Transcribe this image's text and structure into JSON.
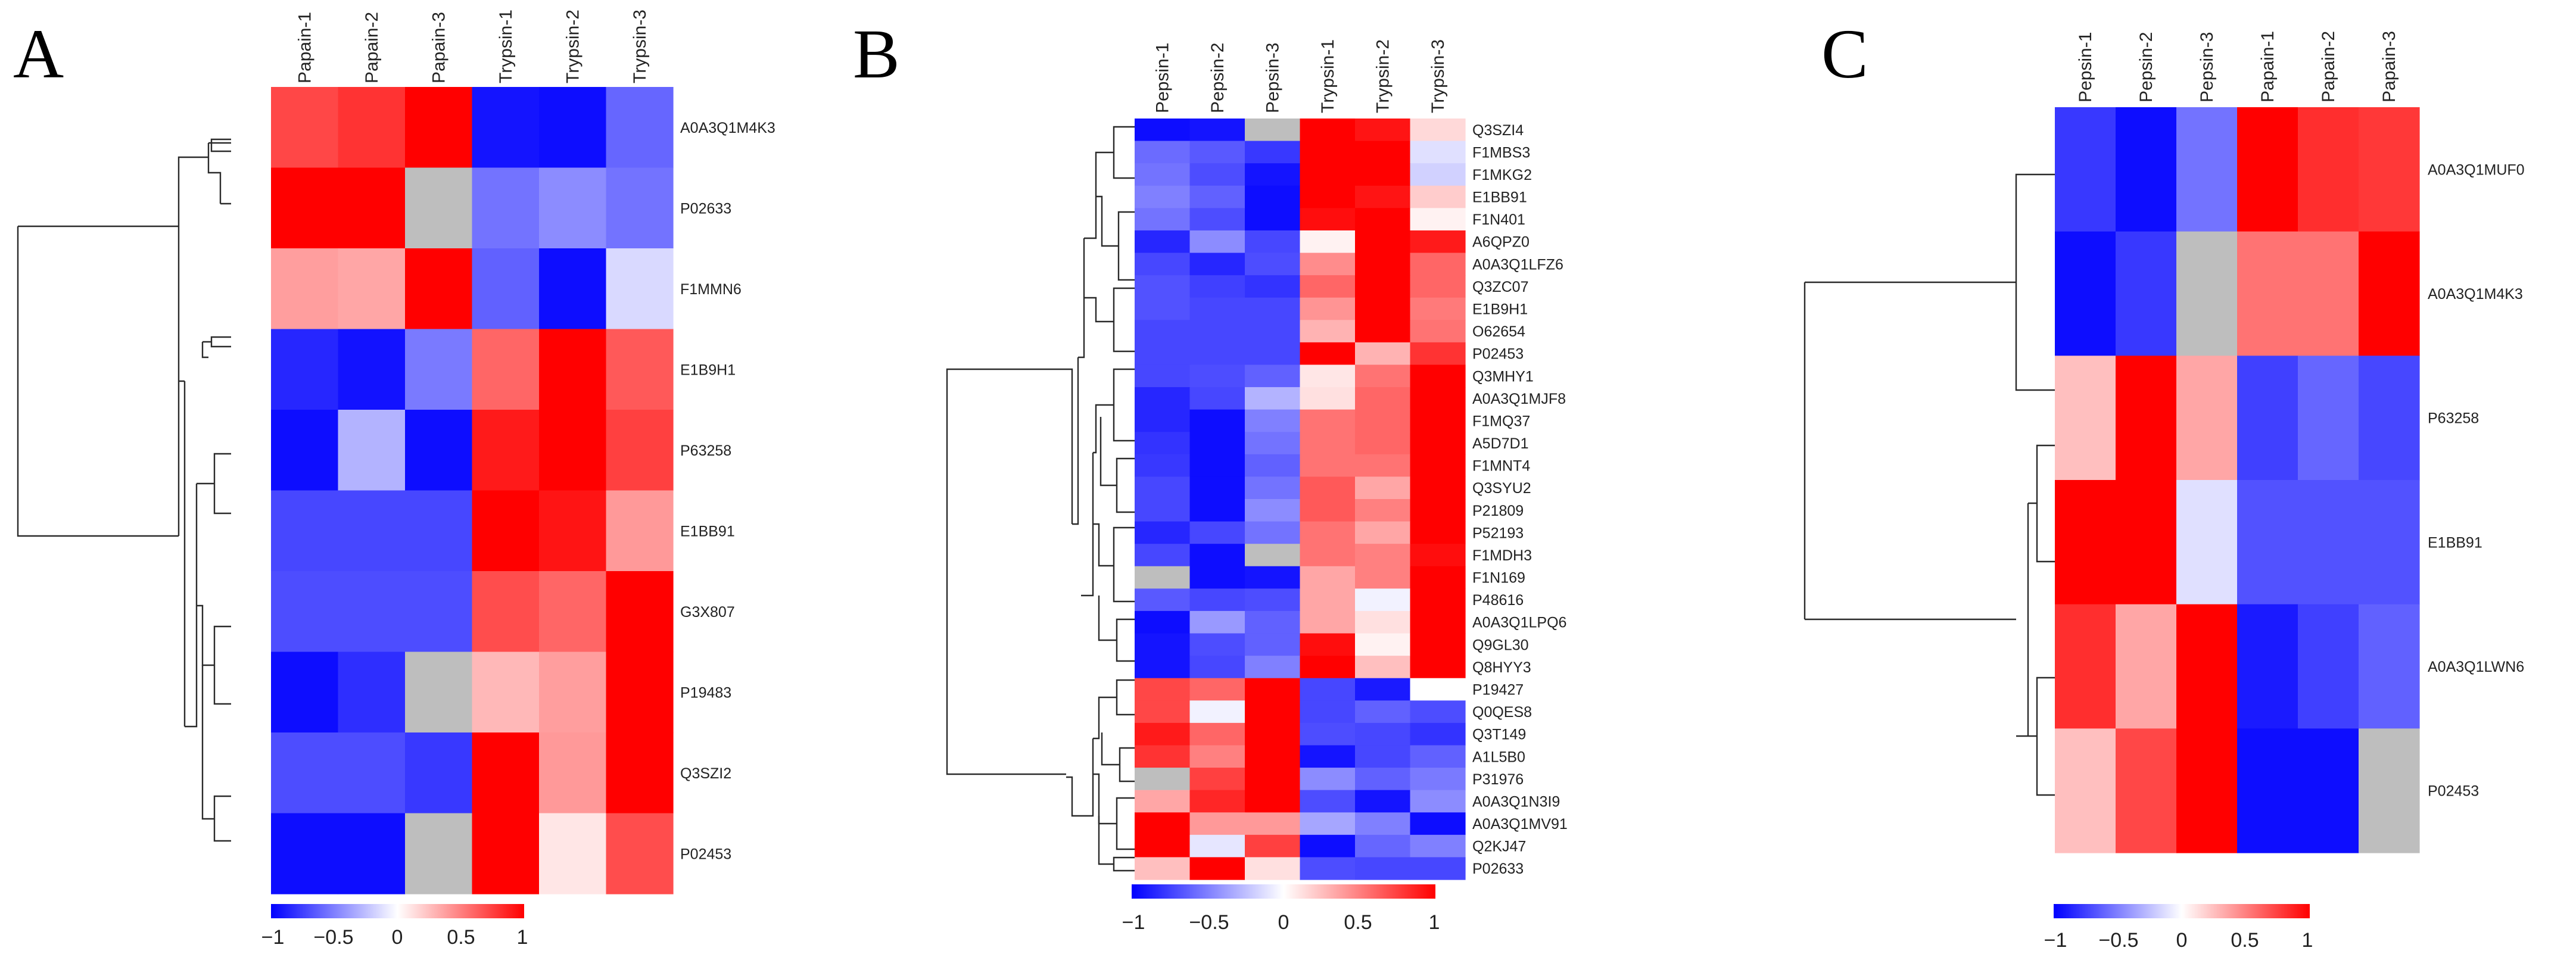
{
  "colors": {
    "low": "#0000ff",
    "mid": "#ffffff",
    "high": "#ff0000",
    "na": "#bebebe"
  },
  "chart_data": [
    {
      "type": "heatmap",
      "panel": "A",
      "columns": [
        "Papain-1",
        "Papain-2",
        "Papain-3",
        "Trypsin-1",
        "Trypsin-2",
        "Trypsin-3"
      ],
      "rows": [
        "A0A3Q1M4K3",
        "P02633",
        "F1MMN6",
        "E1B9H1",
        "P63258",
        "E1BB91",
        "G3X807",
        "P19483",
        "Q3SZI2",
        "P02453"
      ],
      "values": [
        [
          0.72,
          0.8,
          1.0,
          -0.92,
          -0.95,
          -0.6
        ],
        [
          1.0,
          1.0,
          null,
          -0.55,
          -0.45,
          -0.55
        ],
        [
          0.38,
          0.35,
          1.0,
          -0.62,
          -0.95,
          -0.15
        ],
        [
          -0.85,
          -0.93,
          -0.52,
          0.6,
          1.0,
          0.65
        ],
        [
          -0.95,
          -0.3,
          -0.95,
          0.9,
          1.0,
          0.75
        ],
        [
          -0.72,
          -0.72,
          -0.72,
          1.0,
          0.92,
          0.4
        ],
        [
          -0.7,
          -0.7,
          -0.7,
          0.7,
          0.6,
          1.0
        ],
        [
          -0.95,
          -0.82,
          null,
          0.28,
          0.38,
          1.0
        ],
        [
          -0.7,
          -0.7,
          -0.78,
          1.0,
          0.4,
          1.0
        ],
        [
          -0.95,
          -0.95,
          null,
          1.0,
          0.1,
          0.7
        ]
      ],
      "legend": {
        "min": -1,
        "max": 1,
        "ticks": [
          "−1",
          "−0.5",
          "0",
          "0.5",
          "1"
        ]
      }
    },
    {
      "type": "heatmap",
      "panel": "B",
      "columns": [
        "Pepsin-1",
        "Pepsin-2",
        "Pepsin-3",
        "Trypsin-1",
        "Trypsin-2",
        "Trypsin-3"
      ],
      "rows": [
        "Q3SZI4",
        "F1MBS3",
        "F1MKG2",
        "E1BB91",
        "F1N401",
        "A6QPZ0",
        "A0A3Q1LFZ6",
        "Q3ZC07",
        "E1B9H1",
        "O62654",
        "P02453",
        "Q3MHY1",
        "A0A3Q1MJF8",
        "F1MQ37",
        "A5D7D1",
        "F1MNT4",
        "Q3SYU2",
        "P21809",
        "P52193",
        "F1MDH3",
        "F1N169",
        "P48616",
        "A0A3Q1LPQ6",
        "Q9GL30",
        "Q8HYY3",
        "P19427",
        "Q0QES8",
        "Q3T149",
        "A1L5B0",
        "P31976",
        "A0A3Q1N3I9",
        "A0A3Q1MV91",
        "Q2KJ47",
        "P02633"
      ],
      "values": [
        [
          -0.95,
          -0.92,
          null,
          1.0,
          0.92,
          0.15
        ],
        [
          -0.58,
          -0.65,
          -0.78,
          1.0,
          1.0,
          -0.12
        ],
        [
          -0.55,
          -0.7,
          -0.92,
          1.0,
          1.0,
          -0.18
        ],
        [
          -0.5,
          -0.62,
          -0.95,
          1.0,
          0.92,
          0.2
        ],
        [
          -0.55,
          -0.7,
          -0.95,
          0.95,
          1.0,
          0.05
        ],
        [
          -0.85,
          -0.45,
          -0.72,
          0.05,
          1.0,
          0.9
        ],
        [
          -0.72,
          -0.85,
          -0.7,
          0.45,
          1.0,
          0.6
        ],
        [
          -0.68,
          -0.75,
          -0.8,
          0.6,
          1.0,
          0.6
        ],
        [
          -0.68,
          -0.72,
          -0.72,
          0.42,
          1.0,
          0.52
        ],
        [
          -0.72,
          -0.72,
          -0.72,
          0.3,
          1.0,
          0.55
        ],
        [
          -0.72,
          -0.72,
          -0.72,
          1.0,
          0.3,
          0.8
        ],
        [
          -0.72,
          -0.7,
          -0.62,
          0.1,
          0.55,
          1.0
        ],
        [
          -0.85,
          -0.72,
          -0.3,
          0.12,
          0.6,
          1.0
        ],
        [
          -0.85,
          -0.95,
          -0.5,
          0.55,
          0.6,
          1.0
        ],
        [
          -0.8,
          -0.95,
          -0.55,
          0.55,
          0.6,
          1.0
        ],
        [
          -0.78,
          -0.95,
          -0.62,
          0.55,
          0.55,
          1.0
        ],
        [
          -0.72,
          -0.95,
          -0.55,
          0.65,
          0.35,
          1.0
        ],
        [
          -0.72,
          -0.95,
          -0.45,
          0.65,
          0.5,
          1.0
        ],
        [
          -0.85,
          -0.72,
          -0.55,
          0.55,
          0.35,
          1.0
        ],
        [
          -0.72,
          -0.95,
          null,
          0.55,
          0.5,
          0.95
        ],
        [
          null,
          -0.95,
          -0.92,
          0.35,
          0.5,
          1.0
        ],
        [
          -0.65,
          -0.72,
          -0.7,
          0.35,
          -0.05,
          1.0
        ],
        [
          -0.95,
          -0.4,
          -0.62,
          0.35,
          0.12,
          1.0
        ],
        [
          -0.92,
          -0.7,
          -0.62,
          0.95,
          0.05,
          1.0
        ],
        [
          -0.92,
          -0.72,
          -0.5,
          1.0,
          0.25,
          1.0
        ],
        [
          0.72,
          0.6,
          1.0,
          -0.72,
          -0.9,
          0.0
        ],
        [
          0.72,
          -0.05,
          1.0,
          -0.72,
          -0.62,
          -0.7
        ],
        [
          0.9,
          0.6,
          1.0,
          -0.7,
          -0.72,
          -0.8
        ],
        [
          0.8,
          0.5,
          1.0,
          -0.92,
          -0.72,
          -0.62
        ],
        [
          null,
          0.75,
          1.0,
          -0.45,
          -0.62,
          -0.52
        ],
        [
          0.35,
          0.85,
          1.0,
          -0.7,
          -0.92,
          -0.45
        ],
        [
          1.0,
          0.4,
          0.4,
          -0.35,
          -0.5,
          -0.95
        ],
        [
          1.0,
          -0.1,
          0.75,
          -0.95,
          -0.6,
          -0.5
        ],
        [
          0.25,
          1.0,
          0.12,
          -0.7,
          -0.72,
          -0.72
        ]
      ],
      "legend": {
        "min": -1,
        "max": 1,
        "ticks": [
          "−1",
          "−0.5",
          "0",
          "0.5",
          "1"
        ]
      }
    },
    {
      "type": "heatmap",
      "panel": "C",
      "columns": [
        "Pepsin-1",
        "Pepsin-2",
        "Pepsin-3",
        "Papain-1",
        "Papain-2",
        "Papain-3"
      ],
      "rows": [
        "A0A3Q1MUF0",
        "A0A3Q1M4K3",
        "P63258",
        "E1BB91",
        "A0A3Q1LWN6",
        "P02453"
      ],
      "values": [
        [
          -0.78,
          -0.95,
          -0.55,
          1.0,
          0.82,
          0.78
        ],
        [
          -0.95,
          -0.78,
          null,
          0.55,
          0.55,
          1.0
        ],
        [
          0.25,
          1.0,
          0.35,
          -0.75,
          -0.6,
          -0.72
        ],
        [
          1.0,
          1.0,
          -0.12,
          -0.68,
          -0.68,
          -0.68
        ],
        [
          0.82,
          0.35,
          1.0,
          -0.9,
          -0.75,
          -0.62
        ],
        [
          0.25,
          0.72,
          1.0,
          -0.95,
          -0.95,
          null
        ]
      ],
      "legend": {
        "min": -1,
        "max": 1,
        "ticks": [
          "−1",
          "−0.5",
          "0",
          "0.5",
          "1"
        ]
      }
    }
  ]
}
